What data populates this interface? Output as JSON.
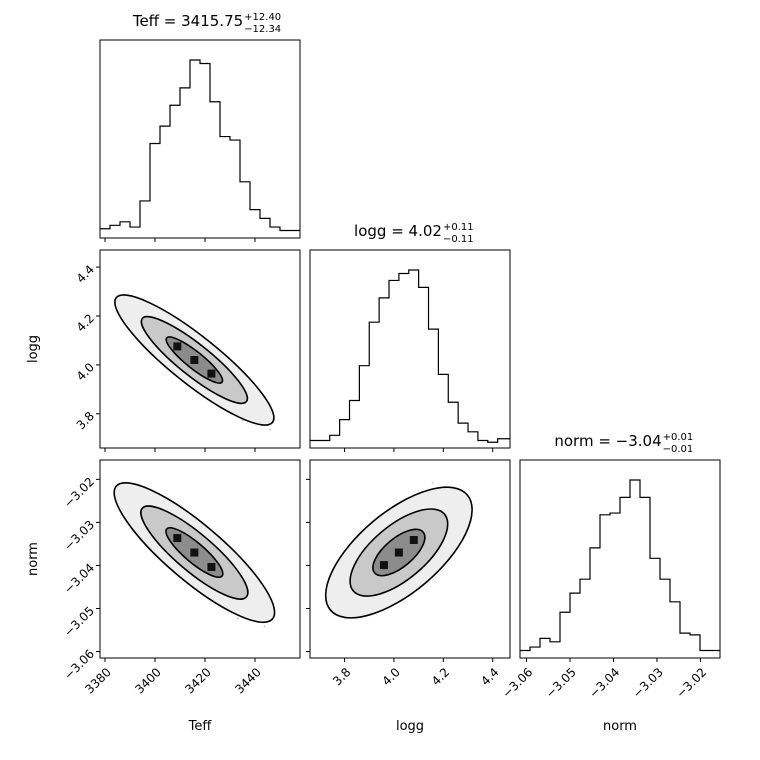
{
  "figure_type": "corner plot",
  "colors": {
    "axes": "#000000",
    "background": "#ffffff",
    "points": "#9a9a9a"
  },
  "chart_data": [
    {
      "type": "histogram",
      "panel": "teff-histogram",
      "title_text": "Teff = 3415.75",
      "title_sup": "+12.40",
      "title_sub": "−12.34",
      "xlim": [
        3378,
        3458
      ],
      "bin_edges": [
        3378,
        3382,
        3386,
        3390,
        3394,
        3398,
        3402,
        3406,
        3410,
        3414,
        3418,
        3422,
        3426,
        3430,
        3434,
        3438,
        3442,
        3446,
        3450,
        3454,
        3458
      ],
      "counts": [
        0.03,
        0.05,
        0.07,
        0.04,
        0.19,
        0.52,
        0.62,
        0.74,
        0.84,
        1.0,
        0.98,
        0.76,
        0.56,
        0.54,
        0.3,
        0.14,
        0.09,
        0.04,
        0.02,
        0.02
      ],
      "grid": false
    },
    {
      "type": "histogram",
      "panel": "logg-histogram",
      "title_text": "logg = 4.02",
      "title_sup": "+0.11",
      "title_sub": "−0.11",
      "xlim": [
        3.66,
        4.47
      ],
      "bin_edges": [
        3.66,
        3.7,
        3.74,
        3.78,
        3.82,
        3.86,
        3.9,
        3.94,
        3.98,
        4.02,
        4.06,
        4.1,
        4.14,
        4.18,
        4.22,
        4.26,
        4.3,
        4.34,
        4.38,
        4.42,
        4.47
      ],
      "counts": [
        0.02,
        0.02,
        0.05,
        0.14,
        0.25,
        0.45,
        0.7,
        0.84,
        0.94,
        0.98,
        1.0,
        0.9,
        0.66,
        0.4,
        0.24,
        0.12,
        0.07,
        0.02,
        0.01,
        0.03
      ],
      "grid": false
    },
    {
      "type": "histogram",
      "panel": "norm-histogram",
      "title_text": "norm = −3.04",
      "title_sup": "+0.01",
      "title_sub": "−0.01",
      "xlim": [
        -3.0615,
        -3.0155
      ],
      "bin_edges": [
        -3.0615,
        -3.0592,
        -3.0569,
        -3.0546,
        -3.0523,
        -3.05,
        -3.0477,
        -3.0454,
        -3.0431,
        -3.0408,
        -3.0385,
        -3.0362,
        -3.0339,
        -3.0316,
        -3.0293,
        -3.027,
        -3.0247,
        -3.0224,
        -3.0201,
        -3.0178,
        -3.0155
      ],
      "counts": [
        0.02,
        0.04,
        0.09,
        0.07,
        0.24,
        0.35,
        0.43,
        0.61,
        0.8,
        0.81,
        0.9,
        1.0,
        0.9,
        0.55,
        0.43,
        0.3,
        0.12,
        0.11,
        0.02,
        0.02
      ],
      "grid": false
    },
    {
      "type": "scatter",
      "panel": "teff-vs-logg",
      "xlim": [
        3378,
        3458
      ],
      "ylim": [
        3.66,
        4.47
      ],
      "ylabel": "logg",
      "contour_levels": 3,
      "grid": false
    },
    {
      "type": "scatter",
      "panel": "teff-vs-norm",
      "xlim": [
        3378,
        3458
      ],
      "ylim": [
        -3.0615,
        -3.0155
      ],
      "xlabel": "Teff",
      "ylabel": "norm",
      "contour_levels": 3,
      "grid": false
    },
    {
      "type": "scatter",
      "panel": "logg-vs-norm",
      "xlim": [
        3.66,
        4.47
      ],
      "ylim": [
        -3.0615,
        -3.0155
      ],
      "xlabel": "logg",
      "contour_levels": 3,
      "grid": false
    },
    {
      "type": "histogram",
      "panel": "norm-x-labels",
      "xlabel": "norm"
    }
  ],
  "ticks": {
    "teff": [
      "3380",
      "3400",
      "3420",
      "3440"
    ],
    "logg": [
      "3.8",
      "4.0",
      "4.2",
      "4.4"
    ],
    "norm": [
      "−3.06",
      "−3.05",
      "−3.04",
      "−3.03",
      "−3.02"
    ]
  },
  "tick_values": {
    "teff": [
      3380,
      3400,
      3420,
      3440
    ],
    "logg": [
      3.8,
      4.0,
      4.2,
      4.4
    ],
    "norm": [
      -3.06,
      -3.05,
      -3.04,
      -3.03,
      -3.02
    ]
  },
  "labels": {
    "teff": "Teff",
    "logg": "logg",
    "norm": "norm"
  }
}
